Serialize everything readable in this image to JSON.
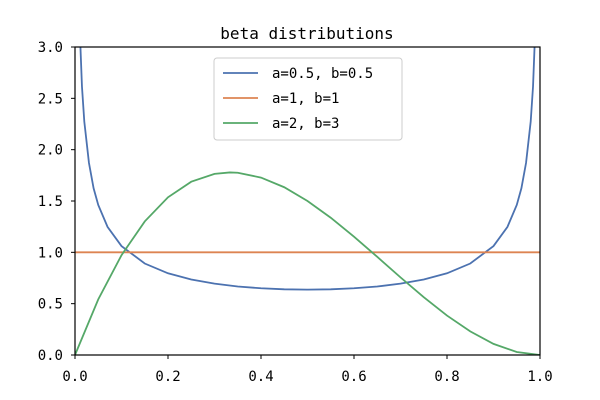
{
  "chart_data": {
    "type": "line",
    "title": "beta distributions",
    "xlabel": "",
    "ylabel": "",
    "xlim": [
      0.0,
      1.0
    ],
    "ylim": [
      0.0,
      3.0
    ],
    "x_ticks": [
      "0.0",
      "0.2",
      "0.4",
      "0.6",
      "0.8",
      "1.0"
    ],
    "y_ticks": [
      "0.0",
      "0.5",
      "1.0",
      "1.5",
      "2.0",
      "2.5",
      "3.0"
    ],
    "grid": false,
    "legend_position": "top-center",
    "series": [
      {
        "name": "a=0.5, b=0.5",
        "color": "#4c72b0",
        "x": [
          0.01,
          0.015,
          0.02,
          0.03,
          0.04,
          0.05,
          0.07,
          0.1,
          0.15,
          0.2,
          0.25,
          0.3,
          0.35,
          0.4,
          0.45,
          0.5,
          0.55,
          0.6,
          0.65,
          0.7,
          0.75,
          0.8,
          0.85,
          0.9,
          0.93,
          0.95,
          0.96,
          0.97,
          0.98,
          0.985,
          0.99
        ],
        "y": [
          3.199,
          2.614,
          2.274,
          1.871,
          1.624,
          1.461,
          1.248,
          1.061,
          0.891,
          0.796,
          0.735,
          0.695,
          0.667,
          0.65,
          0.64,
          0.637,
          0.64,
          0.65,
          0.667,
          0.695,
          0.735,
          0.796,
          0.891,
          1.061,
          1.248,
          1.461,
          1.624,
          1.871,
          2.274,
          2.614,
          3.199
        ]
      },
      {
        "name": "a=1, b=1",
        "color": "#dd8452",
        "x": [
          0.0,
          1.0
        ],
        "y": [
          1.0,
          1.0
        ]
      },
      {
        "name": "a=2, b=3",
        "color": "#55a868",
        "x": [
          0.0,
          0.05,
          0.1,
          0.15,
          0.2,
          0.25,
          0.3,
          0.333,
          0.35,
          0.4,
          0.45,
          0.5,
          0.55,
          0.6,
          0.65,
          0.7,
          0.75,
          0.8,
          0.85,
          0.9,
          0.95,
          1.0
        ],
        "y": [
          0.0,
          0.542,
          0.972,
          1.301,
          1.536,
          1.688,
          1.764,
          1.778,
          1.775,
          1.728,
          1.634,
          1.5,
          1.337,
          1.152,
          0.956,
          0.756,
          0.563,
          0.384,
          0.23,
          0.108,
          0.029,
          0.0
        ]
      }
    ]
  }
}
